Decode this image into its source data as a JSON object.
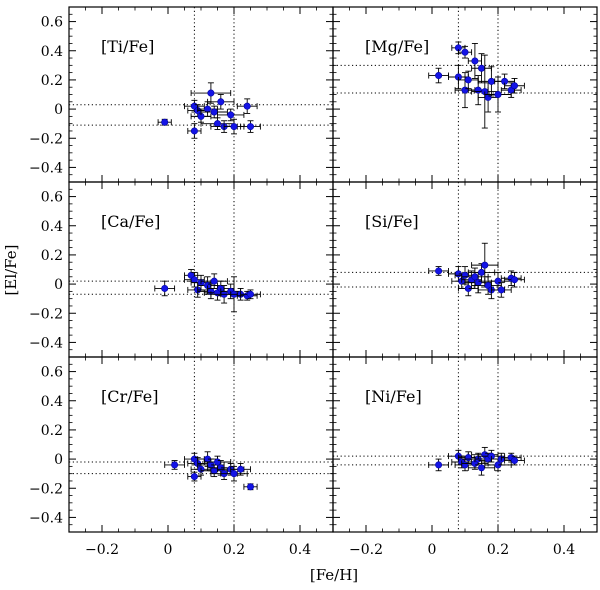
{
  "chart_data": {
    "type": "scatter",
    "xlabel": "[Fe/H]",
    "ylabel": "[El/Fe]",
    "xlim": [
      -0.3,
      0.5
    ],
    "ylim": [
      -0.5,
      0.7
    ],
    "x_ticks": [
      -0.2,
      0,
      0.2,
      0.4
    ],
    "x_tick_labels": [
      "−0.2",
      "0",
      "0.2",
      "0.4"
    ],
    "y_ticks": [
      -0.4,
      -0.2,
      0,
      0.2,
      0.4,
      0.6
    ],
    "y_tick_labels": [
      "−0.4",
      "−0.2",
      "0",
      "0.2",
      "0.4",
      "0.6"
    ],
    "vertical_reference_lines": [
      0.08,
      0.2
    ],
    "marker_color": "#1414e6",
    "panels": [
      {
        "label": "[Ti/Fe]",
        "hlines": [
          0.03,
          -0.11
        ],
        "points": [
          {
            "x": -0.01,
            "y": -0.09,
            "xerr": 0.02,
            "yerr": 0.02
          },
          {
            "x": 0.08,
            "y": -0.15,
            "xerr": 0.02,
            "yerr": 0.05
          },
          {
            "x": 0.08,
            "y": 0.02,
            "xerr": 0.03,
            "yerr": 0.04
          },
          {
            "x": 0.09,
            "y": -0.01,
            "xerr": 0.03,
            "yerr": 0.04
          },
          {
            "x": 0.1,
            "y": -0.05,
            "xerr": 0.03,
            "yerr": 0.04
          },
          {
            "x": 0.12,
            "y": 0.0,
            "xerr": 0.03,
            "yerr": 0.05
          },
          {
            "x": 0.13,
            "y": 0.11,
            "xerr": 0.06,
            "yerr": 0.07
          },
          {
            "x": 0.14,
            "y": -0.02,
            "xerr": 0.04,
            "yerr": 0.04
          },
          {
            "x": 0.15,
            "y": -0.1,
            "xerr": 0.05,
            "yerr": 0.04
          },
          {
            "x": 0.16,
            "y": 0.05,
            "xerr": 0.04,
            "yerr": 0.05
          },
          {
            "x": 0.17,
            "y": -0.12,
            "xerr": 0.04,
            "yerr": 0.04
          },
          {
            "x": 0.19,
            "y": -0.04,
            "xerr": 0.04,
            "yerr": 0.04
          },
          {
            "x": 0.2,
            "y": -0.12,
            "xerr": 0.03,
            "yerr": 0.05
          },
          {
            "x": 0.24,
            "y": 0.02,
            "xerr": 0.03,
            "yerr": 0.05
          },
          {
            "x": 0.25,
            "y": -0.12,
            "xerr": 0.03,
            "yerr": 0.04
          }
        ]
      },
      {
        "label": "[Mg/Fe]",
        "hlines": [
          0.3,
          0.11
        ],
        "points": [
          {
            "x": 0.02,
            "y": 0.23,
            "xerr": 0.03,
            "yerr": 0.05
          },
          {
            "x": 0.08,
            "y": 0.42,
            "xerr": 0.02,
            "yerr": 0.04
          },
          {
            "x": 0.08,
            "y": 0.22,
            "xerr": 0.03,
            "yerr": 0.08
          },
          {
            "x": 0.1,
            "y": 0.39,
            "xerr": 0.02,
            "yerr": 0.04
          },
          {
            "x": 0.1,
            "y": 0.13,
            "xerr": 0.03,
            "yerr": 0.12
          },
          {
            "x": 0.11,
            "y": 0.2,
            "xerr": 0.03,
            "yerr": 0.06
          },
          {
            "x": 0.13,
            "y": 0.33,
            "xerr": 0.02,
            "yerr": 0.12
          },
          {
            "x": 0.14,
            "y": 0.13,
            "xerr": 0.03,
            "yerr": 0.1
          },
          {
            "x": 0.15,
            "y": 0.28,
            "xerr": 0.03,
            "yerr": 0.1
          },
          {
            "x": 0.16,
            "y": 0.12,
            "xerr": 0.04,
            "yerr": 0.25
          },
          {
            "x": 0.17,
            "y": 0.08,
            "xerr": 0.03,
            "yerr": 0.1
          },
          {
            "x": 0.18,
            "y": 0.19,
            "xerr": 0.04,
            "yerr": 0.1
          },
          {
            "x": 0.2,
            "y": 0.1,
            "xerr": 0.04,
            "yerr": 0.12
          },
          {
            "x": 0.22,
            "y": 0.19,
            "xerr": 0.03,
            "yerr": 0.05
          },
          {
            "x": 0.24,
            "y": 0.13,
            "xerr": 0.03,
            "yerr": 0.05
          },
          {
            "x": 0.25,
            "y": 0.16,
            "xerr": 0.03,
            "yerr": 0.05
          }
        ]
      },
      {
        "label": "[Ca/Fe]",
        "hlines": [
          0.02,
          -0.07
        ],
        "points": [
          {
            "x": -0.01,
            "y": -0.03,
            "xerr": 0.03,
            "yerr": 0.05
          },
          {
            "x": 0.07,
            "y": 0.06,
            "xerr": 0.02,
            "yerr": 0.04
          },
          {
            "x": 0.08,
            "y": 0.03,
            "xerr": 0.03,
            "yerr": 0.05
          },
          {
            "x": 0.09,
            "y": -0.04,
            "xerr": 0.03,
            "yerr": 0.05
          },
          {
            "x": 0.1,
            "y": 0.01,
            "xerr": 0.03,
            "yerr": 0.05
          },
          {
            "x": 0.12,
            "y": -0.01,
            "xerr": 0.03,
            "yerr": 0.06
          },
          {
            "x": 0.13,
            "y": -0.05,
            "xerr": 0.04,
            "yerr": 0.05
          },
          {
            "x": 0.14,
            "y": 0.02,
            "xerr": 0.04,
            "yerr": 0.05
          },
          {
            "x": 0.15,
            "y": -0.06,
            "xerr": 0.04,
            "yerr": 0.05
          },
          {
            "x": 0.16,
            "y": -0.03,
            "xerr": 0.04,
            "yerr": 0.05
          },
          {
            "x": 0.17,
            "y": -0.07,
            "xerr": 0.04,
            "yerr": 0.06
          },
          {
            "x": 0.19,
            "y": -0.05,
            "xerr": 0.03,
            "yerr": 0.05
          },
          {
            "x": 0.2,
            "y": -0.07,
            "xerr": 0.04,
            "yerr": 0.12
          },
          {
            "x": 0.22,
            "y": -0.07,
            "xerr": 0.03,
            "yerr": 0.04
          },
          {
            "x": 0.24,
            "y": -0.08,
            "xerr": 0.03,
            "yerr": 0.03
          },
          {
            "x": 0.25,
            "y": -0.07,
            "xerr": 0.03,
            "yerr": 0.03
          }
        ]
      },
      {
        "label": "[Si/Fe]",
        "hlines": [
          0.08,
          -0.02
        ],
        "points": [
          {
            "x": 0.02,
            "y": 0.09,
            "xerr": 0.03,
            "yerr": 0.03
          },
          {
            "x": 0.08,
            "y": 0.07,
            "xerr": 0.03,
            "yerr": 0.05
          },
          {
            "x": 0.09,
            "y": 0.02,
            "xerr": 0.03,
            "yerr": 0.05
          },
          {
            "x": 0.1,
            "y": 0.06,
            "xerr": 0.03,
            "yerr": 0.06
          },
          {
            "x": 0.11,
            "y": -0.03,
            "xerr": 0.03,
            "yerr": 0.05
          },
          {
            "x": 0.12,
            "y": 0.03,
            "xerr": 0.03,
            "yerr": 0.06
          },
          {
            "x": 0.13,
            "y": 0.05,
            "xerr": 0.04,
            "yerr": 0.06
          },
          {
            "x": 0.14,
            "y": 0.01,
            "xerr": 0.04,
            "yerr": 0.07
          },
          {
            "x": 0.15,
            "y": 0.08,
            "xerr": 0.04,
            "yerr": 0.06
          },
          {
            "x": 0.16,
            "y": 0.13,
            "xerr": 0.04,
            "yerr": 0.15
          },
          {
            "x": 0.17,
            "y": -0.01,
            "xerr": 0.04,
            "yerr": 0.06
          },
          {
            "x": 0.18,
            "y": -0.04,
            "xerr": 0.04,
            "yerr": 0.06
          },
          {
            "x": 0.2,
            "y": 0.02,
            "xerr": 0.04,
            "yerr": 0.06
          },
          {
            "x": 0.21,
            "y": -0.04,
            "xerr": 0.03,
            "yerr": 0.05
          },
          {
            "x": 0.24,
            "y": 0.04,
            "xerr": 0.03,
            "yerr": 0.05
          },
          {
            "x": 0.25,
            "y": 0.03,
            "xerr": 0.03,
            "yerr": 0.05
          }
        ]
      },
      {
        "label": "[Cr/Fe]",
        "hlines": [
          -0.02,
          -0.1
        ],
        "points": [
          {
            "x": 0.02,
            "y": -0.04,
            "xerr": 0.03,
            "yerr": 0.03
          },
          {
            "x": 0.08,
            "y": -0.12,
            "xerr": 0.02,
            "yerr": 0.03
          },
          {
            "x": 0.08,
            "y": 0.0,
            "xerr": 0.03,
            "yerr": 0.04
          },
          {
            "x": 0.09,
            "y": -0.03,
            "xerr": 0.03,
            "yerr": 0.04
          },
          {
            "x": 0.1,
            "y": -0.07,
            "xerr": 0.03,
            "yerr": 0.04
          },
          {
            "x": 0.12,
            "y": 0.0,
            "xerr": 0.03,
            "yerr": 0.05
          },
          {
            "x": 0.13,
            "y": -0.04,
            "xerr": 0.04,
            "yerr": 0.04
          },
          {
            "x": 0.14,
            "y": -0.08,
            "xerr": 0.04,
            "yerr": 0.04
          },
          {
            "x": 0.15,
            "y": -0.02,
            "xerr": 0.04,
            "yerr": 0.04
          },
          {
            "x": 0.16,
            "y": -0.06,
            "xerr": 0.04,
            "yerr": 0.05
          },
          {
            "x": 0.17,
            "y": -0.1,
            "xerr": 0.04,
            "yerr": 0.04
          },
          {
            "x": 0.19,
            "y": -0.07,
            "xerr": 0.04,
            "yerr": 0.04
          },
          {
            "x": 0.2,
            "y": -0.1,
            "xerr": 0.04,
            "yerr": 0.05
          },
          {
            "x": 0.22,
            "y": -0.07,
            "xerr": 0.03,
            "yerr": 0.04
          },
          {
            "x": 0.25,
            "y": -0.19,
            "xerr": 0.02,
            "yerr": 0.02
          }
        ]
      },
      {
        "label": "[Ni/Fe]",
        "hlines": [
          0.02,
          -0.04
        ],
        "points": [
          {
            "x": 0.02,
            "y": -0.04,
            "xerr": 0.03,
            "yerr": 0.04
          },
          {
            "x": 0.08,
            "y": 0.02,
            "xerr": 0.03,
            "yerr": 0.04
          },
          {
            "x": 0.09,
            "y": -0.02,
            "xerr": 0.03,
            "yerr": 0.04
          },
          {
            "x": 0.1,
            "y": -0.04,
            "xerr": 0.03,
            "yerr": 0.04
          },
          {
            "x": 0.11,
            "y": 0.01,
            "xerr": 0.03,
            "yerr": 0.04
          },
          {
            "x": 0.13,
            "y": -0.03,
            "xerr": 0.04,
            "yerr": 0.04
          },
          {
            "x": 0.14,
            "y": 0.0,
            "xerr": 0.04,
            "yerr": 0.04
          },
          {
            "x": 0.15,
            "y": -0.06,
            "xerr": 0.04,
            "yerr": 0.05
          },
          {
            "x": 0.16,
            "y": 0.03,
            "xerr": 0.04,
            "yerr": 0.05
          },
          {
            "x": 0.17,
            "y": 0.0,
            "xerr": 0.04,
            "yerr": 0.04
          },
          {
            "x": 0.18,
            "y": 0.02,
            "xerr": 0.04,
            "yerr": 0.04
          },
          {
            "x": 0.2,
            "y": -0.04,
            "xerr": 0.04,
            "yerr": 0.04
          },
          {
            "x": 0.21,
            "y": 0.0,
            "xerr": 0.03,
            "yerr": 0.04
          },
          {
            "x": 0.24,
            "y": 0.01,
            "xerr": 0.03,
            "yerr": 0.03
          },
          {
            "x": 0.25,
            "y": -0.01,
            "xerr": 0.03,
            "yerr": 0.03
          }
        ]
      }
    ]
  }
}
